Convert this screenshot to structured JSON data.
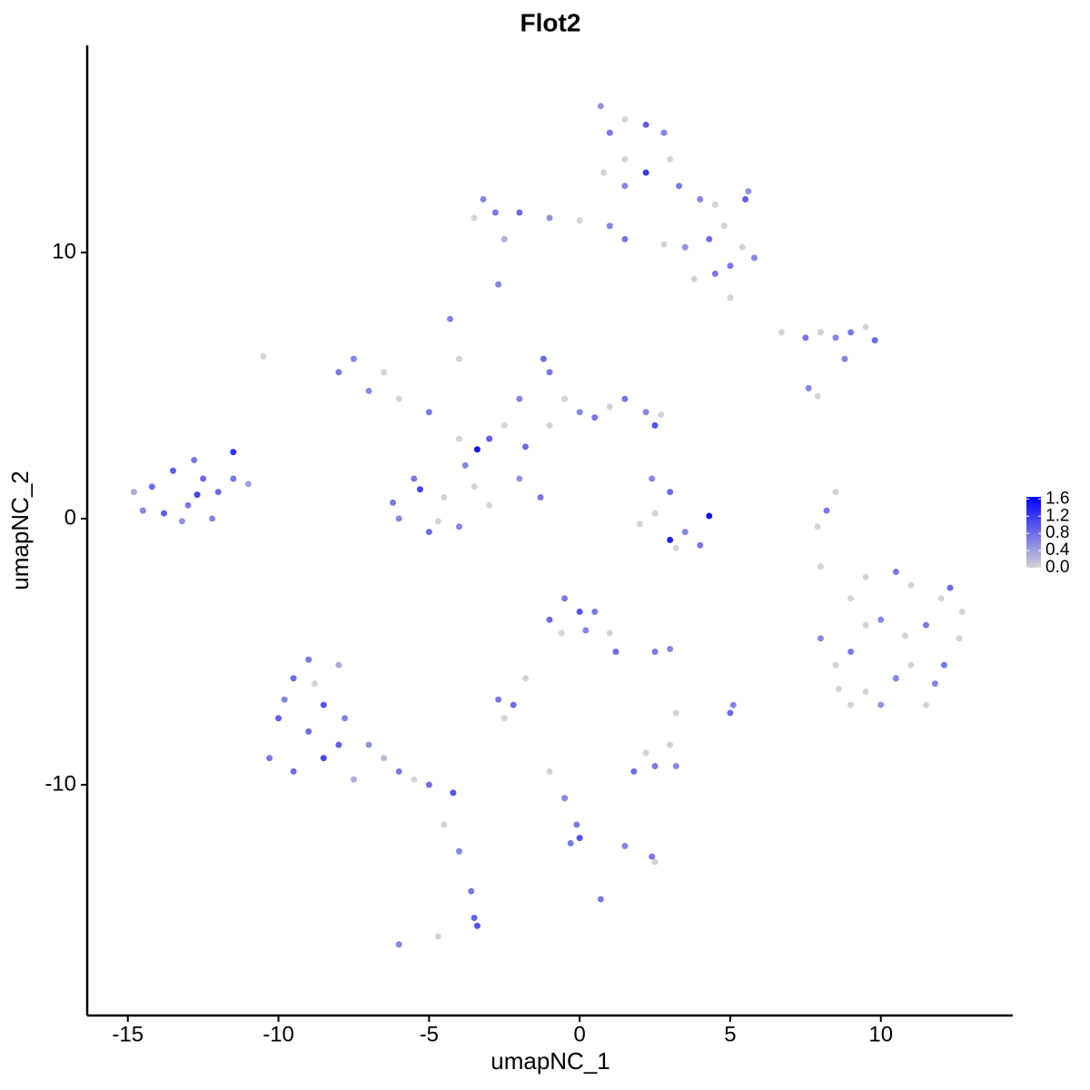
{
  "chart_data": {
    "type": "scatter",
    "title": "Flot2",
    "x_label": "umapNC_1",
    "y_label": "umapNC_2",
    "xlim": [
      -16.35,
      14.38
    ],
    "ylim": [
      -18.67,
      17.78
    ],
    "xticks": [
      -15,
      -10,
      -5,
      0,
      5,
      10
    ],
    "yticks": [
      -10,
      0,
      10
    ],
    "colormap": {
      "low": "#d3d3d3",
      "high": "#0000ff"
    },
    "clim": [
      0,
      1.65
    ],
    "colorbar_ticks": [
      {
        "value": 0,
        "label": "0.0"
      },
      0.4,
      0.8,
      1.2,
      1.6
    ],
    "x": [
      -14.2,
      -13.5,
      -13,
      -12.5,
      -14.5,
      -13.8,
      -12.8,
      -12,
      -11.5,
      -11.5,
      -12.2,
      -13.2,
      -11,
      -14.8,
      -12.7,
      -9.5,
      -9,
      -8,
      -8.5,
      -10,
      -9,
      -7.8,
      -10.3,
      -9.5,
      -8.5,
      -7.5,
      -8,
      -7,
      -6,
      -5,
      -4.2,
      -5.5,
      -6.5,
      -9.8,
      -8.8,
      -4.5,
      -4,
      -3.6,
      -3.5,
      -3.4,
      -6,
      -4.7,
      -3.2,
      -2.8,
      -3.5,
      -2.5,
      -2,
      -1,
      0,
      1,
      1.5,
      0.7,
      1,
      1.5,
      2.2,
      2.8,
      3,
      2.2,
      1.5,
      1.5,
      3.3,
      4,
      4.5,
      5.5,
      5.6,
      4.8,
      4.3,
      5,
      5.8,
      5.4,
      3.8,
      4.5,
      2.8,
      3.5,
      5,
      0.8,
      -2.7,
      -7.5,
      -8,
      -6.5,
      -7,
      -6,
      -5,
      -4.3,
      -4,
      -3,
      -3.4,
      -2.5,
      -2,
      -1.2,
      -1,
      -0.5,
      0,
      0.5,
      1,
      1.5,
      2.2,
      2.5,
      2.7,
      -1,
      -1.8,
      -4,
      -3.8,
      -5.5,
      -6.2,
      -6,
      -5,
      -4,
      -4.5,
      -3.5,
      -5.3,
      -4.7,
      -1.3,
      -2,
      -3,
      -10.5,
      2.4,
      3,
      2.5,
      2,
      3,
      3.5,
      4.3,
      4,
      3.2,
      -0.5,
      0,
      -1,
      0.5,
      1,
      1.2,
      0.2,
      -0.6,
      -1.8,
      -2.7,
      -2.2,
      -2.5,
      2.5,
      3,
      5,
      5.1,
      3.2,
      1.8,
      2.5,
      3.2,
      2.2,
      3,
      -1,
      -0.5,
      -0.1,
      0,
      -0.3,
      1.5,
      2.4,
      2.5,
      0.7,
      6.7,
      7.5,
      8,
      8.5,
      9,
      9.8,
      9.5,
      8.8,
      7.6,
      7.9,
      8.5,
      8.2,
      7.9,
      8,
      8,
      8.5,
      9,
      9.5,
      10,
      10.5,
      11,
      11.5,
      12,
      12.3,
      12.6,
      12.1,
      11,
      10.5,
      9.5,
      9,
      10,
      11.5,
      9,
      10.8,
      9.5,
      11.8,
      8.6,
      12.7
    ],
    "y": [
      1.2,
      1.8,
      0.5,
      1.5,
      0.3,
      0.2,
      2.2,
      1,
      2.5,
      1.5,
      0,
      -0.1,
      1.3,
      1,
      0.9,
      -6,
      -5.3,
      -5.5,
      -7,
      -7.5,
      -8,
      -7.5,
      -9,
      -9.5,
      -9,
      -9.8,
      -8.5,
      -8.5,
      -9.5,
      -10,
      -10.3,
      -9.8,
      -9,
      -6.8,
      -6.2,
      -11.5,
      -12.5,
      -14,
      -15,
      -15.3,
      -16,
      -15.7,
      12,
      11.5,
      11.3,
      10.5,
      11.5,
      11.3,
      11.2,
      11,
      10.5,
      15.5,
      14.5,
      15,
      14.8,
      14.5,
      13.5,
      13,
      12.5,
      13.5,
      12.5,
      12,
      11.8,
      12,
      12.3,
      11,
      10.5,
      9.5,
      9.8,
      10.2,
      9,
      9.2,
      10.3,
      10.2,
      8.3,
      13,
      8.8,
      6,
      5.5,
      5.5,
      4.8,
      4.5,
      4,
      7.5,
      6,
      3,
      2.6,
      3.5,
      4.5,
      6,
      5.5,
      4.5,
      4,
      3.8,
      4.2,
      4.5,
      4,
      3.5,
      3.9,
      3.5,
      2.7,
      3,
      2,
      1.5,
      0.6,
      0,
      -0.5,
      -0.3,
      0.8,
      1.2,
      1.1,
      -0.1,
      0.8,
      1.5,
      0.5,
      6.1,
      1.5,
      1,
      0.2,
      -0.2,
      -0.8,
      -0.5,
      0.1,
      -1,
      -1.1,
      -3,
      -3.5,
      -3.8,
      -3.5,
      -4.3,
      -5,
      -4.2,
      -4.3,
      -6,
      -6.8,
      -7,
      -7.5,
      -5,
      -4.9,
      -7.3,
      -7,
      -7.3,
      -9.5,
      -9.3,
      -9.3,
      -8.8,
      -8.5,
      -9.5,
      -10.5,
      -11.5,
      -12,
      -12.2,
      -12.3,
      -12.7,
      -12.9,
      -14.3,
      7,
      6.8,
      7,
      6.8,
      7,
      6.7,
      7.2,
      6,
      4.9,
      4.6,
      1,
      0.3,
      -0.3,
      -1.8,
      -4.5,
      -5.5,
      -3,
      -2.2,
      -3.8,
      -2,
      -2.5,
      -4,
      -3,
      -2.6,
      -4.5,
      -5.5,
      -5.5,
      -6,
      -6.5,
      -7,
      -7,
      -7,
      -5,
      -4.4,
      -4,
      -6.2,
      -6.4,
      -3.5
    ],
    "values": [
      0.8,
      0.9,
      0.7,
      0.8,
      0.6,
      0.9,
      0.7,
      0.8,
      1.3,
      0.7,
      0.6,
      0.5,
      0.4,
      0.3,
      1.1,
      0.8,
      0.7,
      0.3,
      1,
      0.9,
      0.8,
      0.6,
      0.7,
      0.8,
      1.1,
      0.3,
      0.9,
      0.5,
      0.7,
      0.8,
      1,
      0,
      0.2,
      0.6,
      0,
      0,
      0.6,
      0.7,
      0.9,
      1,
      0.6,
      0,
      0.6,
      0.7,
      0,
      0.3,
      0.8,
      0.5,
      0,
      0.6,
      0.7,
      0.5,
      0.7,
      0,
      0.9,
      0.6,
      0,
      1.2,
      0.6,
      0,
      0.7,
      0.6,
      0,
      0.9,
      0.5,
      0,
      0.8,
      0.7,
      0.6,
      0,
      0,
      0.7,
      0,
      0.5,
      0,
      0,
      0.6,
      0.6,
      0.7,
      0,
      0.6,
      0,
      0.7,
      0.6,
      0,
      0.9,
      1.5,
      0,
      0.6,
      0.8,
      0.7,
      0,
      0.6,
      0.7,
      0,
      0.7,
      0.6,
      1,
      0,
      0,
      0.8,
      0,
      0.6,
      0.7,
      0.7,
      0.6,
      0.8,
      0.6,
      0,
      0,
      1.1,
      0,
      0.7,
      0.5,
      0,
      0,
      0.6,
      0.8,
      0,
      0,
      1.4,
      0.6,
      1.5,
      0.7,
      0,
      0.7,
      1,
      0.8,
      0.7,
      0,
      0.8,
      0.6,
      0,
      0,
      0.7,
      0.8,
      0,
      0.7,
      0.6,
      0.8,
      0.6,
      0,
      0.8,
      0.7,
      0.6,
      0,
      0,
      0,
      0.6,
      0.7,
      1,
      0.7,
      0.6,
      0.7,
      0,
      0.7,
      0,
      0.7,
      0,
      0.6,
      0.7,
      0.8,
      0,
      0.6,
      0.6,
      0,
      0,
      0.7,
      0,
      0,
      0.6,
      0,
      0,
      0,
      0.6,
      0.7,
      0,
      0.7,
      0,
      0.8,
      0,
      0.7,
      0,
      0.6,
      0,
      0,
      0.5,
      0,
      0.7,
      0,
      0,
      0.6,
      0,
      0
    ]
  }
}
